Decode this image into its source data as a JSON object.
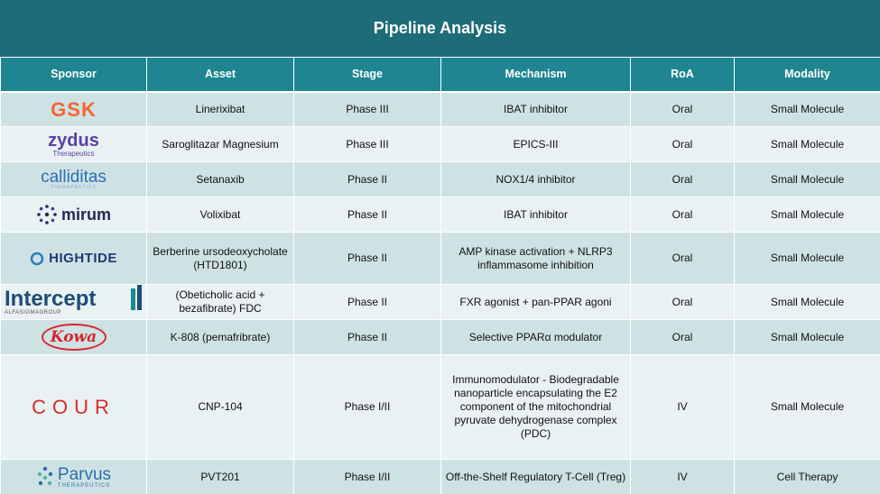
{
  "title": "Pipeline Analysis",
  "headers": {
    "sponsor": "Sponsor",
    "asset": "Asset",
    "stage": "Stage",
    "mechanism": "Mechanism",
    "roa": "RoA",
    "modality": "Modality"
  },
  "rows": [
    {
      "logo": {
        "main": "GSK",
        "sub": ""
      },
      "asset": "Linerixibat",
      "stage": "Phase III",
      "mechanism": "IBAT inhibitor",
      "roa": "Oral",
      "modality": "Small Molecule"
    },
    {
      "logo": {
        "main": "zydus",
        "sub": "Therapeutics"
      },
      "asset": "Saroglitazar Magnesium",
      "stage": "Phase III",
      "mechanism": "EPICS-III",
      "roa": "Oral",
      "modality": "Small Molecule"
    },
    {
      "logo": {
        "main": "calliditas",
        "sub": "THERAPEUTICS"
      },
      "asset": "Setanaxib",
      "stage": "Phase II",
      "mechanism": "NOX1/4 inhibitor",
      "roa": "Oral",
      "modality": "Small Molecule"
    },
    {
      "logo": {
        "main": "mirum",
        "sub": ""
      },
      "asset": "Volixibat",
      "stage": "Phase II",
      "mechanism": "IBAT inhibitor",
      "roa": "Oral",
      "modality": "Small Molecule"
    },
    {
      "logo": {
        "main": "HIGHTIDE",
        "sub": ""
      },
      "asset": "Berberine ursodeoxycholate (HTD1801)",
      "stage": "Phase II",
      "mechanism": "AMP kinase activation + NLRP3 inflammasome inhibition",
      "roa": "Oral",
      "modality": "Small Molecule"
    },
    {
      "logo": {
        "main": "Intercept",
        "sub": "ALFASIGMAGROUP"
      },
      "asset": "(Obeticholic acid + bezafibrate) FDC",
      "stage": "Phase II",
      "mechanism": "FXR agonist + pan-PPAR agoni",
      "roa": "Oral",
      "modality": "Small Molecule"
    },
    {
      "logo": {
        "main": "Kowa",
        "sub": ""
      },
      "asset": "K-808 (pemafribrate)",
      "stage": "Phase II",
      "mechanism": "Selective PPARα modulator",
      "roa": "Oral",
      "modality": "Small Molecule"
    },
    {
      "logo": {
        "main": "COUR",
        "sub": ""
      },
      "asset": "CNP-104",
      "stage": "Phase I/II",
      "mechanism": "Immunomodulator  - Biodegradable nanoparticle encapsulating the E2 component of the mitochondrial pyruvate dehydrogenase complex (PDC)",
      "roa": "IV",
      "modality": "Small Molecule"
    },
    {
      "logo": {
        "main": "Parvus",
        "sub": "THERAPEUTICS"
      },
      "asset": "PVT201",
      "stage": "Phase I/II",
      "mechanism": "Off-the-Shelf Regulatory T-Cell (Treg)",
      "roa": "IV",
      "modality": "Cell Therapy"
    }
  ]
}
